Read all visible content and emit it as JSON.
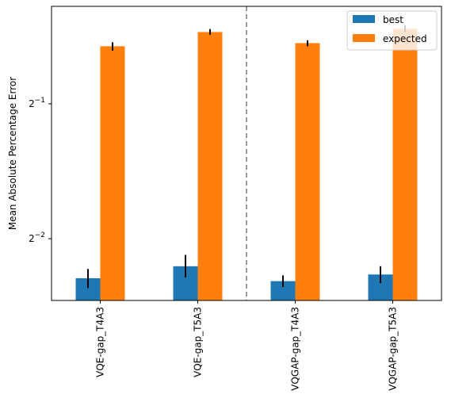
{
  "chart_data": {
    "type": "bar",
    "categories": [
      "VQE-gap_T4A3",
      "VQE-gap_T5A3",
      "VQGAP-gap_T4A3",
      "VQGAP-gap_T5A3"
    ],
    "ylabel": "Mean Absolute Percentage Error",
    "xlabel": "",
    "yscale": "log2",
    "ylim": [
      0.182,
      0.825
    ],
    "yticks": [
      {
        "value": 0.25,
        "base": "2",
        "exp": "−2"
      },
      {
        "value": 0.5,
        "base": "2",
        "exp": "−1"
      }
    ],
    "series": [
      {
        "name": "best",
        "color": "#1f77b4",
        "values": [
          0.204,
          0.217,
          0.201,
          0.208
        ],
        "err_low": [
          0.194,
          0.205,
          0.195,
          0.199
        ],
        "err_high": [
          0.214,
          0.23,
          0.207,
          0.217
        ]
      },
      {
        "name": "expected",
        "color": "#ff7f0e",
        "values": [
          0.672,
          0.723,
          0.683,
          0.735
        ],
        "err_low": [
          0.657,
          0.713,
          0.672,
          0.722
        ],
        "err_high": [
          0.686,
          0.734,
          0.693,
          0.748
        ]
      }
    ],
    "divider": {
      "after_category_index": 1,
      "style": "dashed",
      "color": "#808080"
    },
    "legend": {
      "placement": "top-right"
    },
    "grid": false,
    "error_bar_color": "#000000"
  }
}
